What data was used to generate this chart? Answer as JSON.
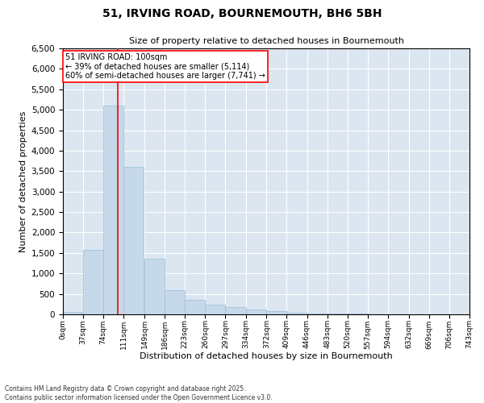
{
  "title1": "51, IRVING ROAD, BOURNEMOUTH, BH6 5BH",
  "title2": "Size of property relative to detached houses in Bournemouth",
  "xlabel": "Distribution of detached houses by size in Bournemouth",
  "ylabel": "Number of detached properties",
  "bar_color": "#c6d9ea",
  "bar_edgecolor": "#9bbdd4",
  "background_color": "#dce6f0",
  "vline_x": 100,
  "vline_color": "red",
  "annotation_text": "51 IRVING ROAD: 100sqm\n← 39% of detached houses are smaller (5,114)\n60% of semi-detached houses are larger (7,741) →",
  "annotation_box_edgecolor": "red",
  "footnote1": "Contains HM Land Registry data © Crown copyright and database right 2025.",
  "footnote2": "Contains public sector information licensed under the Open Government Licence v3.0.",
  "bin_edges": [
    0,
    37,
    74,
    111,
    149,
    186,
    223,
    260,
    297,
    334,
    372,
    409,
    446,
    483,
    520,
    557,
    594,
    632,
    669,
    706,
    743
  ],
  "bin_labels": [
    "0sqm",
    "37sqm",
    "74sqm",
    "111sqm",
    "149sqm",
    "186sqm",
    "223sqm",
    "260sqm",
    "297sqm",
    "334sqm",
    "372sqm",
    "409sqm",
    "446sqm",
    "483sqm",
    "520sqm",
    "557sqm",
    "594sqm",
    "632sqm",
    "669sqm",
    "706sqm",
    "743sqm"
  ],
  "bar_heights": [
    60,
    1580,
    5100,
    3600,
    1350,
    600,
    350,
    240,
    185,
    120,
    75,
    45,
    28,
    18,
    12,
    8,
    5,
    4,
    3,
    2
  ],
  "ylim": [
    0,
    6500
  ],
  "yticks": [
    0,
    500,
    1000,
    1500,
    2000,
    2500,
    3000,
    3500,
    4000,
    4500,
    5000,
    5500,
    6000,
    6500
  ]
}
